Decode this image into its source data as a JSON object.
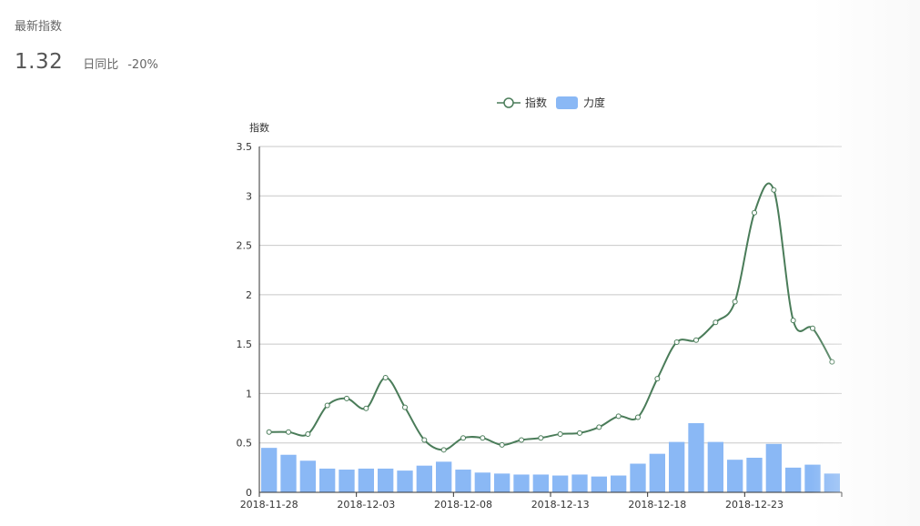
{
  "header": {
    "title": "最新指数",
    "value": "1.32",
    "yoy_label": "日同比",
    "yoy_value": "-20%"
  },
  "chart_data": {
    "type": "line+bar",
    "ylabel": "指数",
    "ylim": [
      0,
      3.5
    ],
    "yticks": [
      "0",
      "0.5",
      "1",
      "1.5",
      "2",
      "2.5",
      "3",
      "3.5"
    ],
    "x_tick_labels": [
      "2018-11-28",
      "2018-12-03",
      "2018-12-08",
      "2018-12-13",
      "2018-12-18",
      "2018-12-23"
    ],
    "legend": [
      "指数",
      "力度"
    ],
    "legend_position": "top-center",
    "grid": true,
    "colors": {
      "line": "#4a7c59",
      "bar": "#8ab8f5"
    },
    "x": [
      "2018-11-28",
      "2018-11-29",
      "2018-11-30",
      "2018-12-01",
      "2018-12-02",
      "2018-12-03",
      "2018-12-04",
      "2018-12-05",
      "2018-12-06",
      "2018-12-07",
      "2018-12-08",
      "2018-12-09",
      "2018-12-10",
      "2018-12-11",
      "2018-12-12",
      "2018-12-13",
      "2018-12-14",
      "2018-12-15",
      "2018-12-16",
      "2018-12-17",
      "2018-12-18",
      "2018-12-19",
      "2018-12-20",
      "2018-12-21",
      "2018-12-22",
      "2018-12-23",
      "2018-12-24",
      "2018-12-25",
      "2018-12-26",
      "2018-12-27"
    ],
    "series": [
      {
        "name": "指数",
        "type": "line",
        "values": [
          0.61,
          0.61,
          0.59,
          0.88,
          0.95,
          0.85,
          1.16,
          0.86,
          0.53,
          0.43,
          0.55,
          0.55,
          0.48,
          0.53,
          0.55,
          0.59,
          0.6,
          0.66,
          0.77,
          0.76,
          1.15,
          1.52,
          1.54,
          1.72,
          1.93,
          2.83,
          3.06,
          1.74,
          1.66,
          1.32
        ]
      },
      {
        "name": "力度",
        "type": "bar",
        "values": [
          0.45,
          0.38,
          0.32,
          0.24,
          0.23,
          0.24,
          0.24,
          0.22,
          0.27,
          0.31,
          0.23,
          0.2,
          0.19,
          0.18,
          0.18,
          0.17,
          0.18,
          0.16,
          0.17,
          0.29,
          0.39,
          0.51,
          0.7,
          0.51,
          0.33,
          0.35,
          0.49,
          0.25,
          0.28,
          0.19
        ]
      }
    ]
  }
}
